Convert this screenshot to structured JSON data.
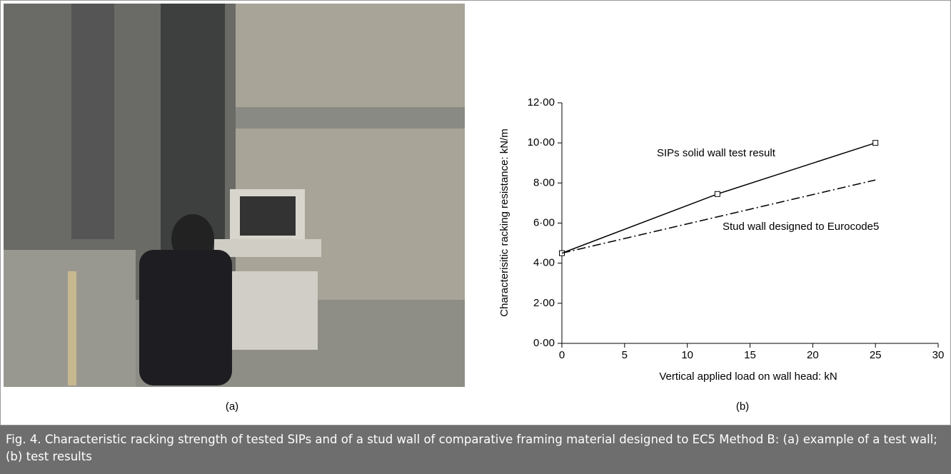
{
  "figure": {
    "panel_a_label": "(a)",
    "panel_b_label": "(b)",
    "caption": "Fig. 4.  Characteristic racking strength of tested SIPs and of a stud wall of comparative framing material designed to EC5 Method B: (a) example of a test wall; (b) test results"
  },
  "chart_data": {
    "type": "line",
    "x_label": "Vertical applied load on wall head: kN",
    "y_label": "Characterisitic racking resistance: kN/m",
    "xlim": [
      0,
      30
    ],
    "xticks": [
      0,
      5,
      10,
      15,
      20,
      25,
      30
    ],
    "ylim": [
      0,
      12
    ],
    "yticks": [
      {
        "value": 0,
        "label": "0·00"
      },
      {
        "value": 2,
        "label": "2·00"
      },
      {
        "value": 4,
        "label": "4·00"
      },
      {
        "value": 6,
        "label": "6·00"
      },
      {
        "value": 8,
        "label": "8·00"
      },
      {
        "value": 10,
        "label": "10·00"
      },
      {
        "value": 12,
        "label": "12·00"
      }
    ],
    "series": [
      {
        "name": "SIPs solid wall test result",
        "color": "#000000",
        "dash": "solid",
        "marker": "square",
        "x": [
          0,
          12.4,
          25
        ],
        "values": [
          4.5,
          7.45,
          10.0
        ]
      },
      {
        "name": "Stud wall designed to Eurocode5",
        "color": "#000000",
        "dash": "dashdot",
        "marker": "none",
        "x": [
          0,
          25
        ],
        "values": [
          4.5,
          8.15
        ]
      }
    ]
  }
}
